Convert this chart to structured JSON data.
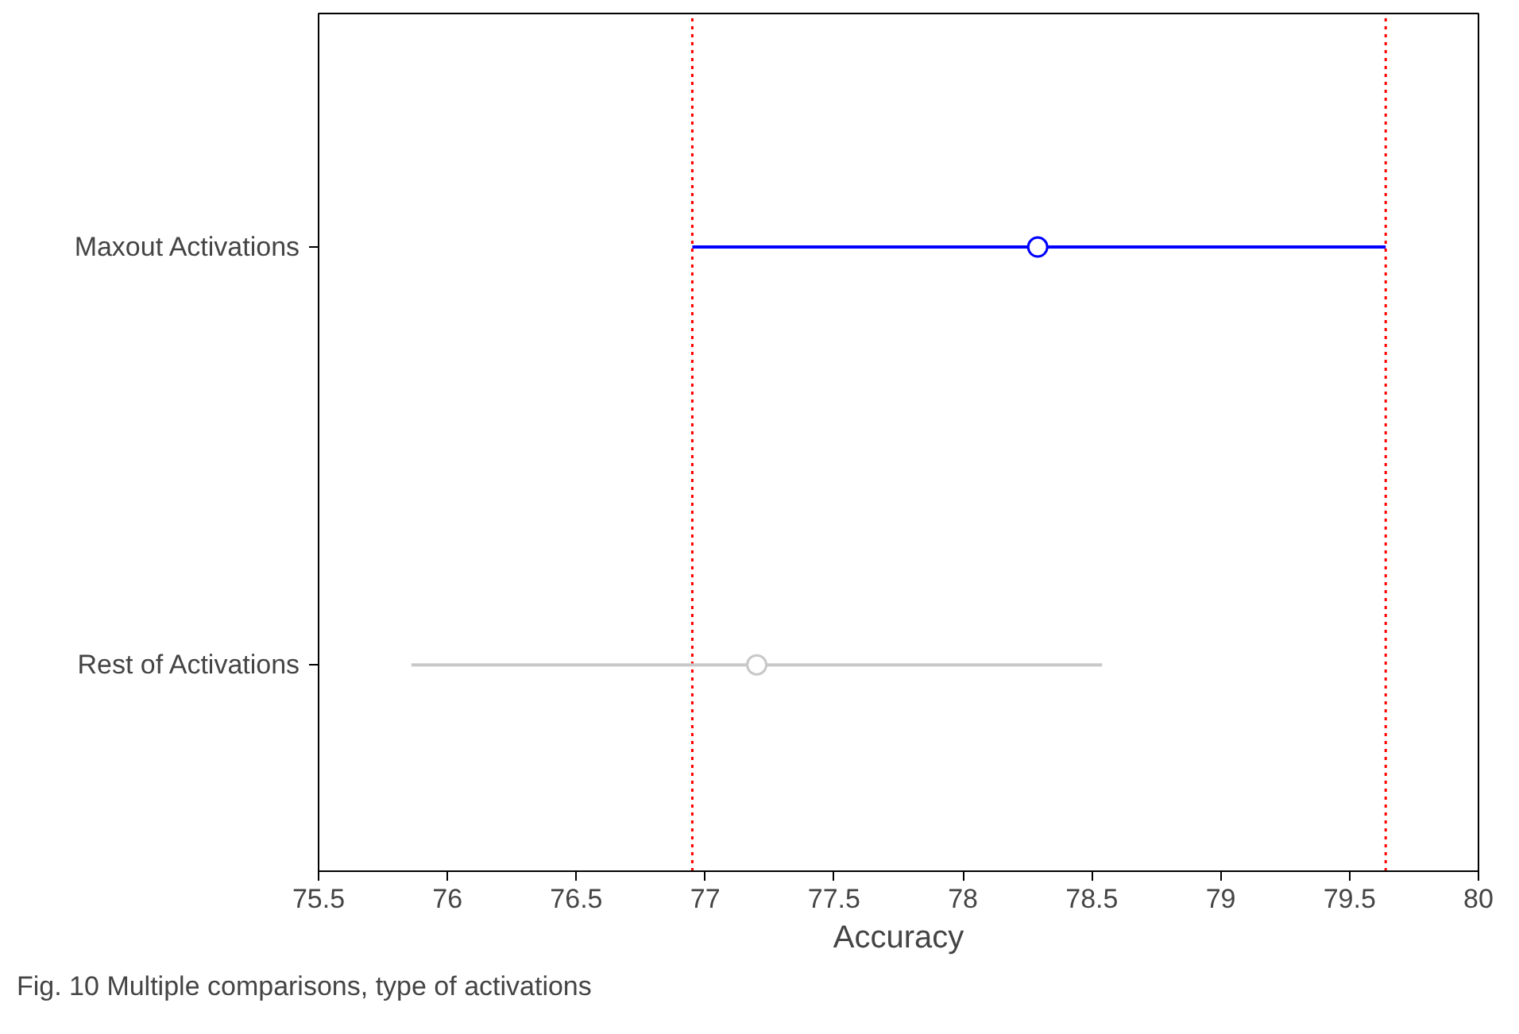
{
  "chart_data": {
    "type": "scatter",
    "orientation": "horizontal",
    "title": "Fig. 10  Multiple comparisons, type of activations",
    "xlabel": "Accuracy",
    "categories": [
      "Maxout Activations",
      "Rest of Activations"
    ],
    "values": [
      78.29,
      77.2
    ],
    "errors": [
      [
        76.95,
        79.64
      ],
      [
        75.86,
        78.54
      ]
    ],
    "colors": [
      "#0000ff",
      "#c8c8c8"
    ],
    "marker": "circle",
    "xlim": [
      75.5,
      80
    ],
    "xticks": [
      75.5,
      76,
      76.5,
      77,
      77.5,
      78,
      78.5,
      79,
      79.5,
      80
    ],
    "ref_lines": [
      {
        "axis": "x",
        "value": 76.95,
        "color": "#ff0000",
        "line_style": "dotted"
      },
      {
        "axis": "x",
        "value": 79.64,
        "color": "#ff0000",
        "line_style": "dotted"
      }
    ],
    "grid": false
  }
}
